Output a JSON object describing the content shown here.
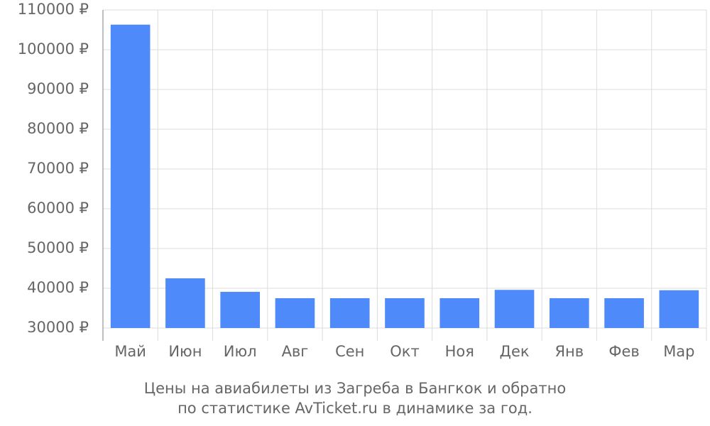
{
  "chart_data": {
    "type": "bar",
    "title": [
      "Цены на авиабилеты из Загреба в Бангкок и обратно",
      "по статистике AvTicket.ru в динамике за год."
    ],
    "categories": [
      "Май",
      "Июн",
      "Июл",
      "Авг",
      "Сен",
      "Окт",
      "Ноя",
      "Дек",
      "Янв",
      "Фев",
      "Мар"
    ],
    "values": [
      106300,
      42500,
      39100,
      37500,
      37500,
      37500,
      37500,
      39600,
      37500,
      37500,
      39500
    ],
    "color": "#4e8af9",
    "ylim": [
      30000,
      110000
    ],
    "yticks": [
      {
        "value": 30000,
        "label": "30000 ₽"
      },
      {
        "value": 40000,
        "label": "40000 ₽"
      },
      {
        "value": 50000,
        "label": "50000 ₽"
      },
      {
        "value": 60000,
        "label": "60000 ₽"
      },
      {
        "value": 70000,
        "label": "70000 ₽"
      },
      {
        "value": 80000,
        "label": "80000 ₽"
      },
      {
        "value": 90000,
        "label": "90000 ₽"
      },
      {
        "value": 100000,
        "label": "100000 ₽"
      },
      {
        "value": 110000,
        "label": "110000 ₽"
      }
    ],
    "grid": true
  }
}
